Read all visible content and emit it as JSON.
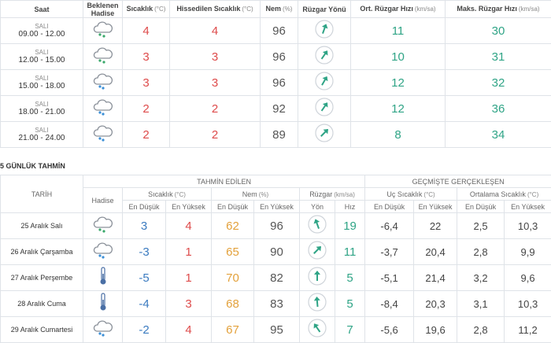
{
  "hourly": {
    "headers": [
      {
        "label": "Saat"
      },
      {
        "label": "Beklenen Hadise"
      },
      {
        "label": "Sıcaklık",
        "unit": "(°C)"
      },
      {
        "label": "Hissedilen Sıcaklık",
        "unit": "(°C)"
      },
      {
        "label": "Nem",
        "unit": "(%)"
      },
      {
        "label": "Rüzgar Yönü"
      },
      {
        "label": "Ort. Rüzgar Hızı",
        "unit": "(km/sa)"
      },
      {
        "label": "Maks. Rüzgar Hızı",
        "unit": "(km/sa)"
      }
    ],
    "rows": [
      {
        "day": "SALI",
        "time": "09.00 - 12.00",
        "temp": 4,
        "feels": 4,
        "humidity": 96,
        "avg_wind": 11,
        "max_wind": 30
      },
      {
        "day": "SALI",
        "time": "12.00 - 15.00",
        "temp": 3,
        "feels": 3,
        "humidity": 96,
        "avg_wind": 10,
        "max_wind": 31
      },
      {
        "day": "SALI",
        "time": "15.00 - 18.00",
        "temp": 3,
        "feels": 3,
        "humidity": 96,
        "avg_wind": 12,
        "max_wind": 32
      },
      {
        "day": "SALI",
        "time": "18.00 - 21.00",
        "temp": 2,
        "feels": 2,
        "humidity": 92,
        "avg_wind": 12,
        "max_wind": 36
      },
      {
        "day": "SALI",
        "time": "21.00 - 24.00",
        "temp": 2,
        "feels": 2,
        "humidity": 89,
        "avg_wind": 8,
        "max_wind": 34
      }
    ]
  },
  "forecast": {
    "title": "5 GÜNLÜK TAHMİN",
    "groups": [
      "TAHMİN EDİLEN",
      "GEÇMİŞTE GERÇEKLEŞEN"
    ],
    "date_header": "TARİH",
    "event_header": "Hadise",
    "columns": [
      {
        "label": "Sıcaklık",
        "unit": "(°C)",
        "sub": [
          "En Düşük",
          "En Yüksek"
        ]
      },
      {
        "label": "Nem",
        "unit": "(%)",
        "sub": [
          "En Düşük",
          "En Yüksek"
        ]
      },
      {
        "label": "Rüzgar",
        "unit": "(km/sa)",
        "sub": [
          "Yön",
          "Hız"
        ]
      },
      {
        "label": "Uç Sıcaklık",
        "unit": "(°C)",
        "sub": [
          "En Düşük",
          "En Yüksek"
        ]
      },
      {
        "label": "Ortalama Sıcaklık",
        "unit": "(°C)",
        "sub": [
          "En Düşük",
          "En Yüksek"
        ]
      }
    ],
    "rows": [
      {
        "date": "25 Aralık Salı",
        "temp_low": 3,
        "temp_high": 4,
        "hum_low": 62,
        "hum_high": 96,
        "wind_speed": 19,
        "ext_low": "-6,4",
        "ext_high": "22",
        "avg_low": "2,5",
        "avg_high": "10,3"
      },
      {
        "date": "26 Aralık Çarşamba",
        "temp_low": -3,
        "temp_high": 1,
        "hum_low": 65,
        "hum_high": 90,
        "wind_speed": 11,
        "ext_low": "-3,7",
        "ext_high": "20,4",
        "avg_low": "2,8",
        "avg_high": "9,9"
      },
      {
        "date": "27 Aralık Perşembe",
        "temp_low": -5,
        "temp_high": 1,
        "hum_low": 70,
        "hum_high": 82,
        "wind_speed": 5,
        "ext_low": "-5,1",
        "ext_high": "21,4",
        "avg_low": "3,2",
        "avg_high": "9,6"
      },
      {
        "date": "28 Aralık Cuma",
        "temp_low": -4,
        "temp_high": 3,
        "hum_low": 68,
        "hum_high": 83,
        "wind_speed": 5,
        "ext_low": "-8,4",
        "ext_high": "20,3",
        "avg_low": "3,1",
        "avg_high": "10,3"
      },
      {
        "date": "29 Aralık Cumartesi",
        "temp_low": -2,
        "temp_high": 4,
        "hum_low": 67,
        "hum_high": 95,
        "wind_speed": 7,
        "ext_low": "-5,6",
        "ext_high": "19,6",
        "avg_low": "2,8",
        "avg_high": "11,2"
      }
    ]
  }
}
